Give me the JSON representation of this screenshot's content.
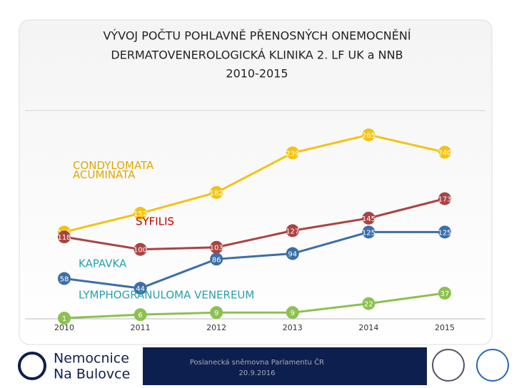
{
  "chart_data": {
    "type": "line",
    "title": [
      "VÝVOJ POČTU POHLAVNĚ PŘENOSNÝCH ONEMOCNĚNÍ",
      "DERMATOVENEROLOGICKÁ KLINIKA 2. LF UK a NNB",
      "2010-2015"
    ],
    "categories": [
      "2010",
      "2011",
      "2012",
      "2013",
      "2014",
      "2015"
    ],
    "ylim": [
      0,
      300
    ],
    "series": [
      {
        "name": "CONDYLOMATA ACUMINATA",
        "color": "#f2c314",
        "values": [
          125,
          152,
          182,
          239,
          265,
          240
        ]
      },
      {
        "name": "SYFILIS",
        "color": "#a94442",
        "values": [
          118,
          100,
          103,
          127,
          145,
          173
        ]
      },
      {
        "name": "KAPAVKA",
        "color": "#3c6ea8",
        "values": [
          58,
          44,
          86,
          94,
          125,
          125
        ]
      },
      {
        "name": "LYMPHOGRANULOMA VENEREUM",
        "color": "#8cc151",
        "values": [
          1,
          6,
          9,
          9,
          22,
          37
        ]
      }
    ],
    "label_colors": [
      "#e0a800",
      "#c00000",
      "#2aa0b0",
      "#2aa0b0"
    ]
  },
  "footer": {
    "logo": [
      "Nemocnice",
      "Na Bulovce"
    ],
    "venue": "Poslanecká sněmovna Parlamentu ČR",
    "date": "20.9.2016"
  }
}
